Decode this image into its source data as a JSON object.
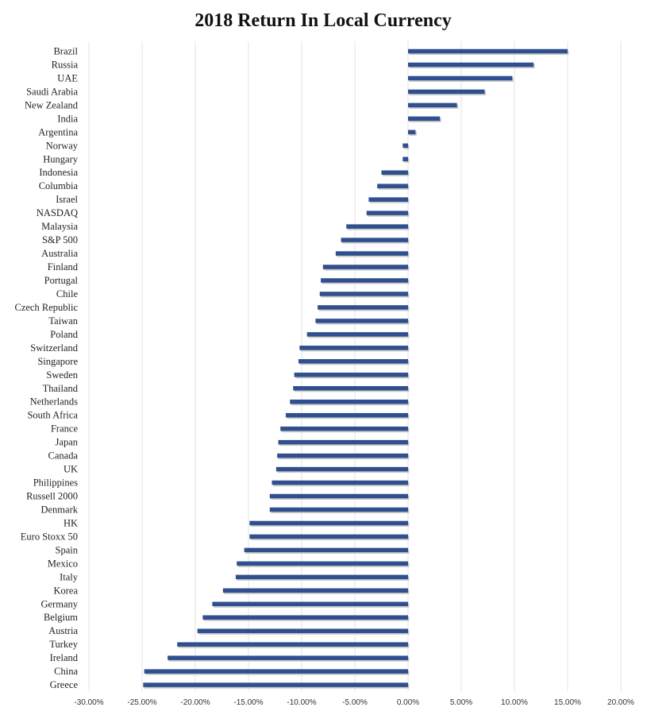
{
  "chart_data": {
    "type": "bar",
    "orientation": "horizontal",
    "title": "2018 Return In Local Currency",
    "xlabel": "",
    "ylabel": "",
    "xlim": [
      -0.3,
      0.2
    ],
    "x_ticks": [
      -0.3,
      -0.25,
      -0.2,
      -0.15,
      -0.1,
      -0.05,
      0.0,
      0.05,
      0.1,
      0.15,
      0.2
    ],
    "x_tick_labels": [
      "-30.00%",
      "-25.00%",
      "-20.00%",
      "-15.00%",
      "-10.00%",
      "-5.00%",
      "0.00%",
      "5.00%",
      "10.00%",
      "15.00%",
      "20.00%"
    ],
    "grid": true,
    "legend": "none",
    "bar_color": "#2f4f8f",
    "categories": [
      "Brazil",
      "Russia",
      "UAE",
      "Saudi Arabia",
      "New Zealand",
      "India",
      "Argentina",
      "Norway",
      "Hungary",
      "Indonesia",
      "Columbia",
      "Israel",
      "NASDAQ",
      "Malaysia",
      "S&P 500",
      "Australia",
      "Finland",
      "Portugal",
      "Chile",
      "Czech Republic",
      "Taiwan",
      "Poland",
      "Switzerland",
      "Singapore",
      "Sweden",
      "Thailand",
      "Netherlands",
      "South Africa",
      "France",
      "Japan",
      "Canada",
      "UK",
      "Philippines",
      "Russell 2000",
      "Denmark",
      "HK",
      "Euro Stoxx 50",
      "Spain",
      "Mexico",
      "Italy",
      "Korea",
      "Germany",
      "Belgium",
      "Austria",
      "Turkey",
      "Ireland",
      "China",
      "Greece"
    ],
    "values": [
      0.15,
      0.118,
      0.098,
      0.072,
      0.046,
      0.03,
      0.007,
      -0.005,
      -0.005,
      -0.025,
      -0.029,
      -0.037,
      -0.039,
      -0.058,
      -0.063,
      -0.068,
      -0.08,
      -0.082,
      -0.083,
      -0.085,
      -0.087,
      -0.095,
      -0.102,
      -0.103,
      -0.107,
      -0.108,
      -0.111,
      -0.115,
      -0.12,
      -0.122,
      -0.123,
      -0.124,
      -0.128,
      -0.13,
      -0.13,
      -0.149,
      -0.149,
      -0.154,
      -0.161,
      -0.162,
      -0.174,
      -0.184,
      -0.193,
      -0.198,
      -0.217,
      -0.226,
      -0.248,
      -0.249
    ]
  }
}
